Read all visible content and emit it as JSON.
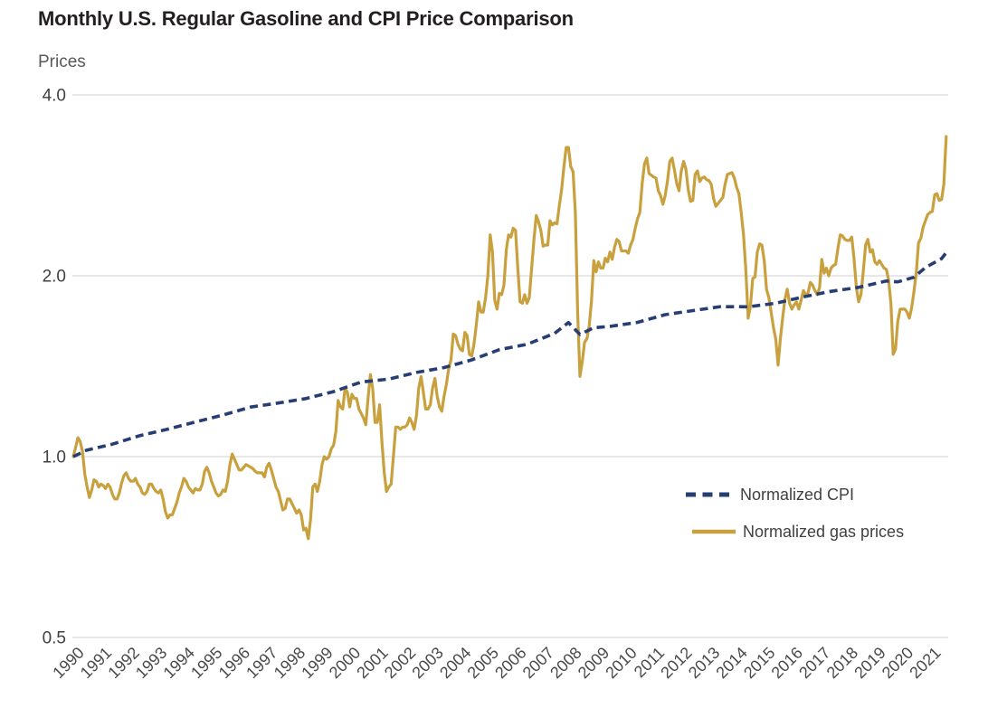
{
  "title": "Monthly U.S. Regular Gasoline and CPI Price Comparison",
  "y_axis": {
    "label": "Prices",
    "scale": "log2",
    "range": [
      0.5,
      4.0
    ],
    "ticks": [
      "4.0",
      "2.0",
      "1.0",
      "0.5"
    ],
    "tick_values": [
      4.0,
      2.0,
      1.0,
      0.5
    ],
    "gridlines": true
  },
  "x_axis": {
    "tick_labels": [
      "1990",
      "1991",
      "1992",
      "1993",
      "1994",
      "1995",
      "1996",
      "1997",
      "1998",
      "1999",
      "2000",
      "2001",
      "2002",
      "2003",
      "2004",
      "2005",
      "2006",
      "2007",
      "2008",
      "2009",
      "2010",
      "2011",
      "2012",
      "2013",
      "2014",
      "2015",
      "2016",
      "2017",
      "2018",
      "2019",
      "2020",
      "2021"
    ],
    "months_per_tick": 12,
    "label_rotation_deg": 45
  },
  "legend": {
    "position": "lower right inside plot",
    "entries": [
      {
        "label": "Normalized CPI",
        "color": "#263e72",
        "style": "dashed"
      },
      {
        "label": "Normalized gas prices",
        "color": "#c8a13e",
        "style": "solid"
      }
    ]
  },
  "colors": {
    "cpi_line": "#263e72",
    "gas_line": "#c8a13e",
    "gridline": "#d9d9d9",
    "title_text": "#231f20",
    "tick_text": "#414042"
  },
  "chart_data": {
    "type": "line",
    "title": "Monthly U.S. Regular Gasoline and CPI Price Comparison",
    "xlabel": "",
    "ylabel": "Prices",
    "y_scale": "log2",
    "ylim": [
      0.5,
      4.0
    ],
    "y_gridlines": [
      4.0,
      2.0,
      1.0,
      0.5
    ],
    "start_month": "1990-08",
    "end_month": "2022-03",
    "frequency": "monthly",
    "normalization": "both series indexed to 1.0 at first data point (Aug 1990)",
    "legend_position": "lower right",
    "series": [
      {
        "name": "Normalized CPI",
        "style": "dashed",
        "color": "#263e72",
        "points_t_v": [
          [
            0,
            1.0
          ],
          [
            4,
            1.017
          ],
          [
            5,
            1.023
          ],
          [
            17,
            1.049
          ],
          [
            29,
            1.084
          ],
          [
            41,
            1.111
          ],
          [
            53,
            1.142
          ],
          [
            65,
            1.173
          ],
          [
            77,
            1.209
          ],
          [
            89,
            1.228
          ],
          [
            101,
            1.249
          ],
          [
            113,
            1.283
          ],
          [
            125,
            1.331
          ],
          [
            137,
            1.346
          ],
          [
            149,
            1.381
          ],
          [
            161,
            1.407
          ],
          [
            173,
            1.449
          ],
          [
            185,
            1.507
          ],
          [
            197,
            1.538
          ],
          [
            209,
            1.604
          ],
          [
            215,
            1.672
          ],
          [
            220,
            1.597
          ],
          [
            226,
            1.639
          ],
          [
            233,
            1.647
          ],
          [
            245,
            1.673
          ],
          [
            257,
            1.723
          ],
          [
            269,
            1.75
          ],
          [
            281,
            1.777
          ],
          [
            293,
            1.776
          ],
          [
            305,
            1.8
          ],
          [
            317,
            1.845
          ],
          [
            329,
            1.884
          ],
          [
            341,
            1.913
          ],
          [
            353,
            1.96
          ],
          [
            358,
            1.954
          ],
          [
            365,
            1.988
          ],
          [
            370,
            2.065
          ],
          [
            377,
            2.136
          ],
          [
            379,
            2.185
          ]
        ]
      },
      {
        "name": "Normalized gas prices",
        "style": "solid",
        "color": "#c8a13e",
        "values_monthly": [
          1.0,
          1.035,
          1.075,
          1.06,
          1.02,
          0.935,
          0.89,
          0.855,
          0.88,
          0.915,
          0.91,
          0.89,
          0.9,
          0.895,
          0.885,
          0.9,
          0.89,
          0.865,
          0.85,
          0.85,
          0.87,
          0.905,
          0.93,
          0.94,
          0.92,
          0.91,
          0.91,
          0.92,
          0.9,
          0.89,
          0.87,
          0.865,
          0.875,
          0.9,
          0.9,
          0.885,
          0.875,
          0.87,
          0.88,
          0.85,
          0.81,
          0.79,
          0.8,
          0.8,
          0.82,
          0.84,
          0.87,
          0.89,
          0.92,
          0.91,
          0.89,
          0.88,
          0.87,
          0.885,
          0.88,
          0.88,
          0.9,
          0.945,
          0.96,
          0.94,
          0.91,
          0.89,
          0.87,
          0.86,
          0.865,
          0.88,
          0.875,
          0.91,
          0.97,
          1.01,
          0.99,
          0.97,
          0.95,
          0.95,
          0.96,
          0.97,
          0.965,
          0.96,
          0.955,
          0.945,
          0.94,
          0.94,
          0.94,
          0.925,
          0.96,
          0.975,
          0.95,
          0.92,
          0.89,
          0.875,
          0.845,
          0.815,
          0.82,
          0.85,
          0.85,
          0.835,
          0.82,
          0.805,
          0.815,
          0.8,
          0.755,
          0.76,
          0.73,
          0.785,
          0.89,
          0.9,
          0.875,
          0.91,
          0.97,
          1.0,
          0.99,
          1.0,
          1.03,
          1.045,
          1.1,
          1.24,
          1.21,
          1.2,
          1.3,
          1.28,
          1.21,
          1.27,
          1.25,
          1.25,
          1.2,
          1.18,
          1.16,
          1.13,
          1.25,
          1.37,
          1.3,
          1.14,
          1.14,
          1.22,
          1.06,
          0.94,
          0.875,
          0.89,
          0.9,
          1.0,
          1.12,
          1.12,
          1.11,
          1.12,
          1.12,
          1.13,
          1.16,
          1.14,
          1.11,
          1.17,
          1.3,
          1.36,
          1.28,
          1.2,
          1.2,
          1.22,
          1.3,
          1.35,
          1.26,
          1.21,
          1.19,
          1.26,
          1.32,
          1.4,
          1.45,
          1.6,
          1.59,
          1.54,
          1.51,
          1.5,
          1.61,
          1.59,
          1.48,
          1.47,
          1.54,
          1.66,
          1.81,
          1.74,
          1.74,
          1.84,
          2.0,
          2.34,
          2.19,
          1.82,
          1.76,
          1.87,
          1.86,
          1.93,
          2.21,
          2.34,
          2.32,
          2.4,
          2.38,
          2.06,
          1.81,
          1.8,
          1.86,
          1.8,
          1.84,
          2.06,
          2.29,
          2.52,
          2.46,
          2.38,
          2.24,
          2.25,
          2.25,
          2.47,
          2.43,
          2.45,
          2.44,
          2.61,
          2.78,
          3.03,
          3.27,
          3.27,
          3.04,
          2.98,
          2.55,
          1.73,
          1.36,
          1.44,
          1.55,
          1.57,
          1.65,
          1.82,
          2.12,
          2.03,
          2.11,
          2.06,
          2.06,
          2.14,
          2.11,
          2.19,
          2.13,
          2.23,
          2.3,
          2.28,
          2.2,
          2.2,
          2.2,
          2.18,
          2.25,
          2.3,
          2.4,
          2.49,
          2.55,
          2.85,
          3.07,
          3.14,
          2.96,
          2.94,
          2.92,
          2.91,
          2.77,
          2.72,
          2.63,
          2.72,
          2.88,
          3.1,
          3.14,
          3.0,
          2.85,
          2.77,
          2.99,
          3.1,
          3.01,
          2.78,
          2.66,
          2.67,
          2.95,
          2.99,
          2.87,
          2.91,
          2.92,
          2.89,
          2.88,
          2.84,
          2.69,
          2.61,
          2.64,
          2.67,
          2.7,
          2.84,
          2.95,
          2.96,
          2.97,
          2.91,
          2.81,
          2.74,
          2.55,
          2.34,
          2.05,
          1.7,
          1.78,
          1.98,
          1.99,
          2.19,
          2.26,
          2.25,
          2.12,
          1.9,
          1.84,
          1.74,
          1.64,
          1.57,
          1.42,
          1.57,
          1.7,
          1.83,
          1.9,
          1.8,
          1.76,
          1.79,
          1.81,
          1.76,
          1.82,
          1.89,
          1.86,
          1.87,
          1.95,
          1.93,
          1.89,
          1.86,
          1.91,
          2.13,
          2.02,
          2.06,
          2.0,
          2.06,
          2.08,
          2.09,
          2.22,
          2.34,
          2.33,
          2.3,
          2.29,
          2.29,
          2.32,
          2.13,
          1.91,
          1.81,
          1.86,
          2.03,
          2.25,
          2.3,
          2.19,
          2.21,
          2.11,
          2.09,
          2.12,
          2.09,
          2.06,
          2.05,
          1.97,
          1.8,
          1.48,
          1.51,
          1.68,
          1.76,
          1.76,
          1.76,
          1.74,
          1.7,
          1.77,
          1.88,
          2.02,
          2.27,
          2.31,
          2.41,
          2.47,
          2.53,
          2.55,
          2.56,
          2.73,
          2.74,
          2.67,
          2.68,
          2.84,
          3.41
        ]
      }
    ]
  }
}
